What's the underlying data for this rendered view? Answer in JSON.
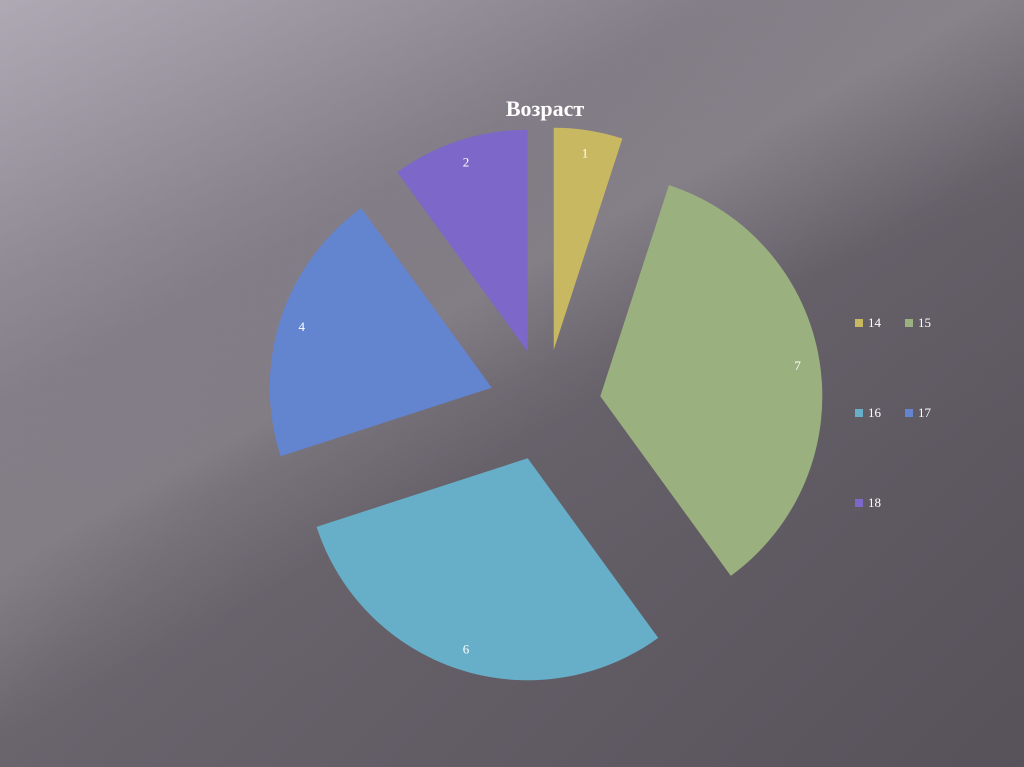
{
  "chart_data": {
    "type": "pie",
    "title": "Возраст",
    "categories": [
      "14",
      "15",
      "16",
      "17",
      "18"
    ],
    "values": [
      1,
      7,
      6,
      4,
      2
    ],
    "colors": [
      "#c9b862",
      "#9bb07f",
      "#67afc9",
      "#6384cf",
      "#7d67c8"
    ],
    "exploded": true,
    "legend_position": "right",
    "data_labels": [
      "1",
      "7",
      "6",
      "4",
      "2"
    ]
  }
}
